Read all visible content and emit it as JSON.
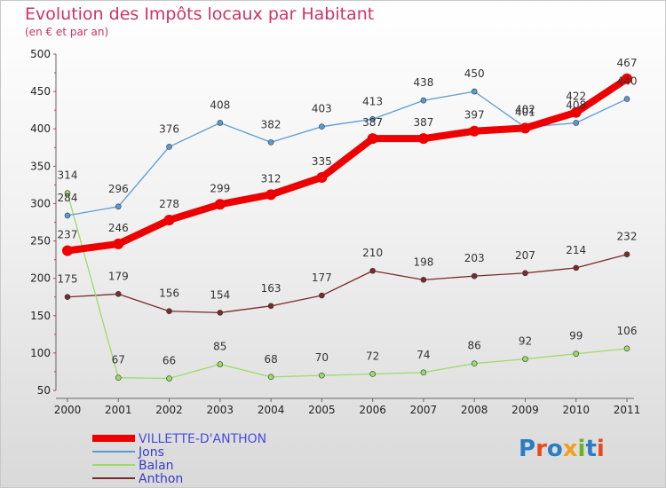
{
  "title": "Evolution des Impôts locaux par Habitant",
  "subtitle": "(en € et par an)",
  "logo": {
    "text": "Proxiti",
    "letter_colors": [
      "#2a7dc4",
      "#e84a1f",
      "#2a7dc4",
      "#f0a020",
      "#69b321",
      "#2a7dc4",
      "#e84a1f"
    ]
  },
  "chart_data": {
    "type": "line",
    "title": "Evolution des Impôts locaux par Habitant",
    "subtitle": "(en € et par an)",
    "xlabel": "",
    "ylabel": "",
    "x": [
      "2000",
      "2001",
      "2002",
      "2003",
      "2004",
      "2005",
      "2006",
      "2007",
      "2008",
      "2009",
      "2010",
      "2011"
    ],
    "ylim": [
      50,
      500
    ],
    "yticks": [
      "50",
      "100",
      "150",
      "200",
      "250",
      "300",
      "350",
      "400",
      "450",
      "500"
    ],
    "grid": false,
    "legend_position": "bottom-left",
    "series": [
      {
        "name": "VILLETTE-D'ANTHON",
        "color": "#ee0000",
        "values": [
          237,
          246,
          278,
          299,
          312,
          335,
          387,
          387,
          397,
          401,
          422,
          467
        ],
        "labels": [
          "237",
          "246",
          "278",
          "299",
          "312",
          "335",
          "387",
          "387",
          "397",
          "401",
          "422",
          "467"
        ]
      },
      {
        "name": "Jons",
        "color": "#5b9bd5",
        "values": [
          284,
          296,
          376,
          408,
          382,
          403,
          413,
          438,
          450,
          402,
          408,
          440
        ],
        "labels": [
          "284",
          "296",
          "376",
          "408",
          "382",
          "403",
          "413",
          "438",
          "450",
          "402",
          "408",
          "440"
        ]
      },
      {
        "name": "Balan",
        "color": "#99dd66",
        "values": [
          314,
          67,
          66,
          85,
          68,
          70,
          72,
          74,
          86,
          92,
          99,
          106
        ],
        "labels": [
          "314",
          "67",
          "66",
          "85",
          "68",
          "70",
          "72",
          "74",
          "86",
          "92",
          "99",
          "106"
        ]
      },
      {
        "name": "Anthon",
        "color": "#7a2a2a",
        "values": [
          175,
          179,
          156,
          154,
          163,
          177,
          210,
          198,
          203,
          207,
          214,
          232
        ],
        "labels": [
          "175",
          "179",
          "156",
          "154",
          "163",
          "177",
          "210",
          "198",
          "203",
          "207",
          "214",
          "232"
        ]
      }
    ]
  }
}
